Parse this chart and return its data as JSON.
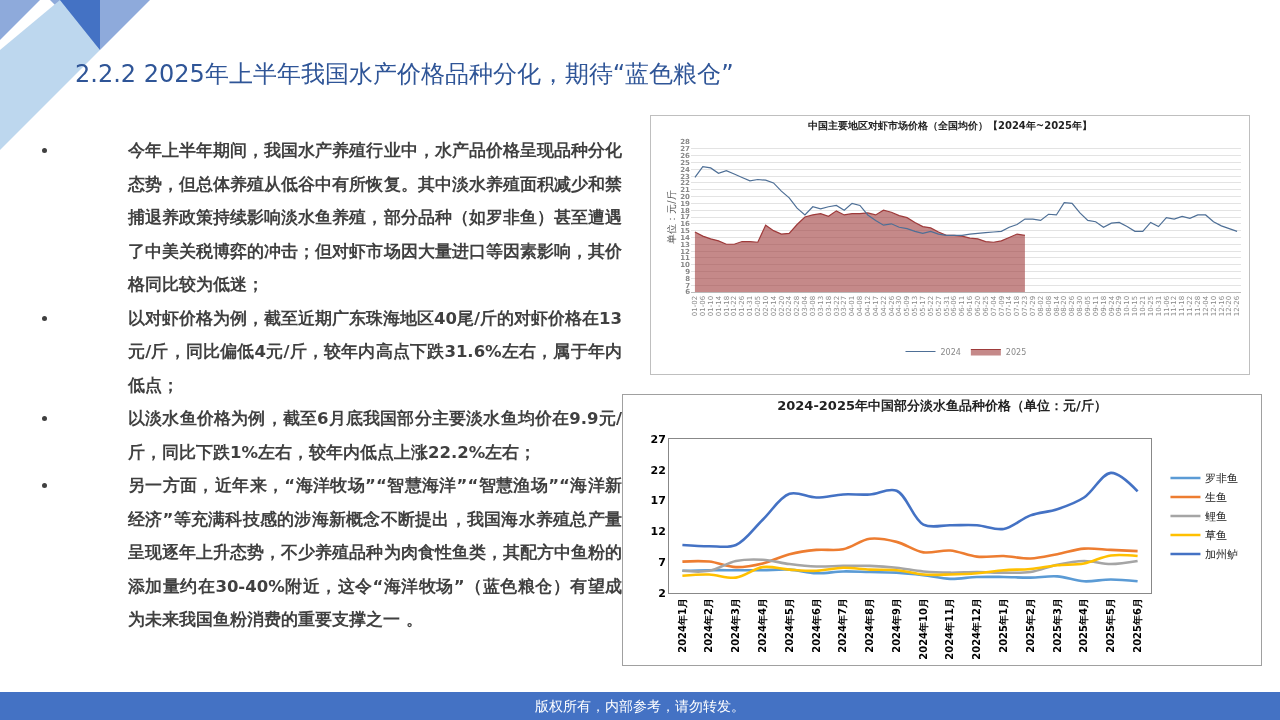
{
  "chart_data": [
    {
      "type": "other",
      "title": "2.2.2 2025年上半年我国水产价格品种分化，期待“蓝色粮仓”",
      "annotations": [
        "今年上半年期间，我国水产养殖行业中，水产品价格呈现品种分化态势，但总体养殖从低谷中有所恢复。其中淡水养殖面积减少和禁捕退养政策持续影响淡水鱼养殖，部分品种（如罗非鱼）甚至遭遇了中美关税博弈的冲击；但对虾市场因大量进口等因素影响，其价格同比较为低迷；",
        "以对虾价格为例，截至近期广东珠海地区40尾/斤的对虾价格在13元/斤，同比偏低4元/斤，较年内高点下跌31.6%左右，属于年内低点；",
        "以淡水鱼价格为例，截至6月底我国部分主要淡水鱼均价在9.9元/斤，同比下跌1%左右，较年内低点上涨22.2%左右；",
        "另一方面，近年来，“海洋牧场”“智慧海洋”“智慧渔场”“海洋新经济”等充满科技感的涉海新概念不断提出，我国海水养殖总产量呈现逐年上升态势，不少养殖品种为肉食性鱼类，其配方中鱼粉的添加量约在30-40%附近，这令“海洋牧场”（蓝色粮仓）有望成为未来我国鱼粉消费的重要支撑之一 。",
        "版权所有，内部参考，请勿转发。"
      ]
    },
    {
      "type": "line",
      "title": "中国主要地区对虾市场价格（全国均价）【2024年~2025年】",
      "ylabel": "单位：元/斤",
      "categories": [
        "01-02",
        "01-06",
        "01-10",
        "01-14",
        "01-18",
        "01-22",
        "01-26",
        "01-31",
        "02-05",
        "02-10",
        "02-14",
        "02-20",
        "02-24",
        "02-28",
        "03-04",
        "03-08",
        "03-13",
        "03-18",
        "03-22",
        "03-27",
        "04-01",
        "04-08",
        "04-12",
        "04-17",
        "04-22",
        "04-26",
        "04-30",
        "05-09",
        "05-13",
        "05-17",
        "05-22",
        "05-27",
        "05-31",
        "06-06",
        "06-11",
        "06-16",
        "06-20",
        "06-25",
        "07-04",
        "07-09",
        "07-14",
        "07-18",
        "07-23",
        "07-29",
        "08-02",
        "08-08",
        "08-14",
        "08-20",
        "08-26",
        "08-30",
        "09-05",
        "09-11",
        "09-18",
        "09-24",
        "09-29",
        "10-10",
        "10-15",
        "10-21",
        "10-25",
        "10-31",
        "11-06",
        "11-12",
        "11-18",
        "11-22",
        "11-28",
        "12-04",
        "12-10",
        "12-16",
        "12-20",
        "12-26"
      ],
      "series": [
        {
          "name": "2024",
          "color": "#4e6f96",
          "values": [
            22.8,
            24.4,
            24.2,
            23.4,
            23.8,
            23.3,
            22.8,
            22.3,
            22.5,
            22.4,
            22.0,
            20.8,
            19.8,
            18.3,
            17.3,
            18.5,
            18.2,
            18.5,
            18.7,
            18.0,
            19.0,
            18.7,
            17.3,
            16.5,
            15.8,
            16.0,
            15.5,
            15.3,
            14.9,
            14.6,
            14.9,
            14.5,
            14.3,
            14.3,
            14.3,
            14.5,
            14.6,
            14.7,
            14.8,
            14.9,
            15.5,
            15.9,
            16.7,
            16.7,
            16.5,
            17.4,
            17.3,
            19.1,
            19.0,
            17.6,
            16.5,
            16.3,
            15.5,
            16.1,
            16.2,
            15.6,
            14.9,
            14.9,
            16.2,
            15.6,
            16.9,
            16.7,
            17.1,
            16.8,
            17.3,
            17.3,
            16.3,
            15.7,
            15.3,
            14.9
          ]
        },
        {
          "name": "2025",
          "type": "area",
          "color": "#9e3b3b",
          "values": [
            14.8,
            14.2,
            13.8,
            13.5,
            13.0,
            13.0,
            13.4,
            13.4,
            13.3,
            15.8,
            15.0,
            14.5,
            14.6,
            15.9,
            17.0,
            17.3,
            17.5,
            17.1,
            17.9,
            17.3,
            17.5,
            17.5,
            17.6,
            17.3,
            18.0,
            17.7,
            17.2,
            16.9,
            16.2,
            15.6,
            15.4,
            14.8,
            14.3,
            14.3,
            14.2,
            13.9,
            13.8,
            13.4,
            13.3,
            13.5,
            14.0,
            14.5,
            14.3,
            null,
            null,
            null,
            null,
            null,
            null,
            null,
            null,
            null,
            null,
            null,
            null,
            null,
            null,
            null,
            null,
            null,
            null,
            null,
            null,
            null,
            null,
            null,
            null,
            null,
            null,
            null
          ]
        }
      ],
      "ylim": [
        6,
        28
      ],
      "yticks": [
        6,
        7,
        8,
        9,
        10,
        11,
        12,
        13,
        14,
        15,
        16,
        17,
        18,
        19,
        20,
        21,
        22,
        23,
        24,
        25,
        26,
        27,
        28
      ],
      "grid": "y",
      "legend": "bottom"
    },
    {
      "type": "line",
      "title": "2024-2025年中国部分淡水鱼品种价格（单位：元/斤）",
      "categories": [
        "2024年1月",
        "2024年2月",
        "2024年3月",
        "2024年4月",
        "2024年5月",
        "2024年6月",
        "2024年7月",
        "2024年8月",
        "2024年9月",
        "2024年10月",
        "2024年11月",
        "2024年12月",
        "2025年1月",
        "2025年2月",
        "2025年3月",
        "2025年4月",
        "2025年5月",
        "2025年6月"
      ],
      "series": [
        {
          "name": "罗非鱼",
          "color": "#5b9bd5",
          "values": [
            5.6,
            5.7,
            5.7,
            5.7,
            5.8,
            5.2,
            5.5,
            5.4,
            5.3,
            4.9,
            4.3,
            4.6,
            4.6,
            4.5,
            4.7,
            3.9,
            4.2,
            3.9
          ]
        },
        {
          "name": "生鱼",
          "color": "#ed7d31",
          "values": [
            7.1,
            7.1,
            6.2,
            6.8,
            8.3,
            9.0,
            9.1,
            10.8,
            10.3,
            8.6,
            8.9,
            7.9,
            8.0,
            7.6,
            8.3,
            9.2,
            9.0,
            8.8
          ]
        },
        {
          "name": "鲤鱼",
          "color": "#a5a5a5",
          "values": [
            5.6,
            5.6,
            7.2,
            7.4,
            6.7,
            6.3,
            6.4,
            6.4,
            6.1,
            5.5,
            5.3,
            5.4,
            5.3,
            5.4,
            6.6,
            7.2,
            6.7,
            7.2
          ]
        },
        {
          "name": "草鱼",
          "color": "#ffc000",
          "values": [
            4.8,
            5.0,
            4.5,
            6.2,
            5.8,
            5.6,
            6.1,
            5.8,
            5.7,
            5.0,
            5.0,
            5.2,
            5.7,
            5.9,
            6.5,
            6.8,
            8.1,
            8.0
          ]
        },
        {
          "name": "加州鲈",
          "color": "#4472c4",
          "values": [
            9.8,
            9.6,
            9.8,
            13.9,
            18.1,
            17.5,
            18.0,
            18.0,
            18.6,
            13.1,
            13.0,
            13.0,
            12.4,
            14.6,
            15.6,
            17.5,
            21.5,
            18.5
          ]
        }
      ],
      "ylim": [
        2,
        27
      ],
      "yticks": [
        2,
        7,
        12,
        17,
        22,
        27
      ],
      "grid": false,
      "legend": "right"
    }
  ]
}
